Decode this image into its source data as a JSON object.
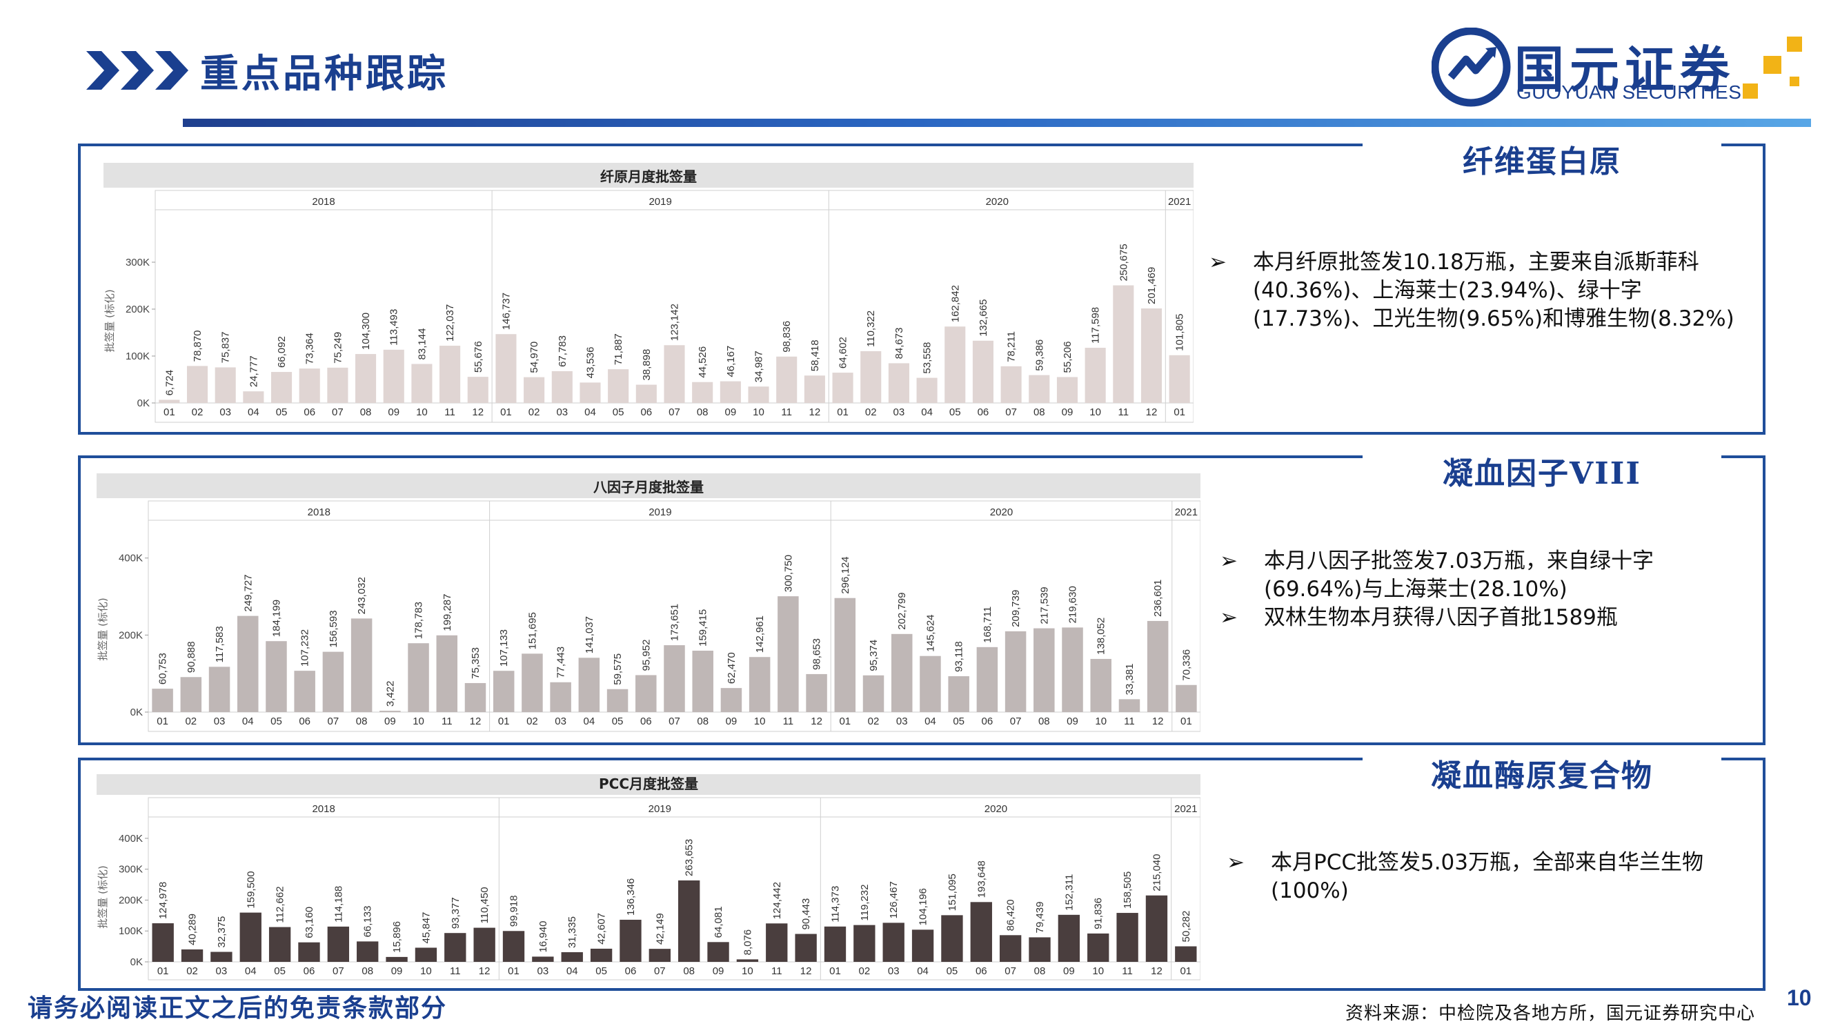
{
  "header": {
    "title": "重点品种跟踪",
    "logo_cn": "国元证券",
    "logo_en": "GUOYUAN SECURITIES"
  },
  "colors": {
    "brand_blue": "#1a3f8f",
    "panel_border": "#1f4e9a",
    "bar_light": "#e0d5d3",
    "bar_mid": "#bfb7b6",
    "bar_dark": "#4a3e3e",
    "logo_gold": "#f2b316"
  },
  "sections": [
    {
      "title": "纤维蛋白原",
      "notes": [
        "本月纤原批签发10.18万瓶，主要来自派斯菲科(40.36%)、上海莱士(23.94%)、绿十字(17.73%)、卫光生物(9.65%)和博雅生物(8.32%)"
      ]
    },
    {
      "title": "凝血因子VIII",
      "notes": [
        "本月八因子批签发7.03万瓶，来自绿十字(69.64%)与上海莱士(28.10%)",
        "双林生物本月获得八因子首批1589瓶"
      ]
    },
    {
      "title": "凝血酶原复合物",
      "notes": [
        "本月PCC批签发5.03万瓶，全部来自华兰生物(100%)"
      ]
    }
  ],
  "chart_data": [
    {
      "type": "bar",
      "title": "纤原月度批签量",
      "ylabel": "批签量 (标化)",
      "ylim": [
        0,
        350000
      ],
      "yticks": [
        0,
        100000,
        200000,
        300000
      ],
      "ytick_labels": [
        "0K",
        "100K",
        "200K",
        "300K"
      ],
      "groups": [
        {
          "label": "2018",
          "categories": [
            "01",
            "02",
            "03",
            "04",
            "05",
            "06",
            "07",
            "08",
            "09",
            "10",
            "11",
            "12"
          ],
          "values": [
            6724,
            78870,
            75837,
            24777,
            66092,
            73364,
            75249,
            104300,
            113493,
            83144,
            122037,
            55676
          ],
          "labels": [
            "6,724",
            "78,870",
            "75,837",
            "24,777",
            "66,092",
            "73,364",
            "75,249",
            "104,300",
            "113,493",
            "83,144",
            "122,037",
            "55,676"
          ]
        },
        {
          "label": "2019",
          "categories": [
            "01",
            "02",
            "03",
            "04",
            "05",
            "06",
            "07",
            "08",
            "09",
            "10",
            "11",
            "12"
          ],
          "values": [
            146737,
            54970,
            67783,
            43536,
            71887,
            38898,
            123142,
            44526,
            46167,
            34987,
            98836,
            58418
          ],
          "labels": [
            "146,737",
            "54,970",
            "67,783",
            "43,536",
            "71,887",
            "38,898",
            "123,142",
            "44,526",
            "46,167",
            "34,987",
            "98,836",
            "58,418"
          ]
        },
        {
          "label": "2020",
          "categories": [
            "01",
            "02",
            "03",
            "04",
            "05",
            "06",
            "07",
            "08",
            "09",
            "10",
            "11",
            "12"
          ],
          "values": [
            64602,
            110322,
            84673,
            53558,
            162842,
            132665,
            78211,
            59386,
            55206,
            117598,
            250675,
            201469
          ],
          "labels": [
            "64,602",
            "110,322",
            "84,673",
            "53,558",
            "162,842",
            "132,665",
            "78,211",
            "59,386",
            "55,206",
            "117,598",
            "250,675",
            "201,469"
          ]
        },
        {
          "label": "2021",
          "categories": [
            "01"
          ],
          "values": [
            101805
          ],
          "labels": [
            "101,805"
          ]
        }
      ]
    },
    {
      "type": "bar",
      "title": "八因子月度批签量",
      "ylabel": "批签量 (标化)",
      "ylim": [
        0,
        430000
      ],
      "yticks": [
        0,
        200000,
        400000
      ],
      "ytick_labels": [
        "0K",
        "200K",
        "400K"
      ],
      "groups": [
        {
          "label": "2018",
          "categories": [
            "01",
            "02",
            "03",
            "04",
            "05",
            "06",
            "07",
            "08",
            "09",
            "10",
            "11",
            "12"
          ],
          "values": [
            60753,
            90888,
            117583,
            249727,
            184199,
            107232,
            156593,
            243032,
            3422,
            178783,
            199287,
            75353
          ],
          "labels": [
            "60,753",
            "90,888",
            "117,583",
            "249,727",
            "184,199",
            "107,232",
            "156,593",
            "243,032",
            "3,422",
            "178,783",
            "199,287",
            "75,353"
          ]
        },
        {
          "label": "2019",
          "categories": [
            "01",
            "02",
            "03",
            "04",
            "05",
            "06",
            "07",
            "08",
            "09",
            "10",
            "11",
            "12"
          ],
          "values": [
            107133,
            151695,
            77443,
            141037,
            59575,
            95952,
            173651,
            159415,
            62470,
            142961,
            300750,
            98653
          ],
          "labels": [
            "107,133",
            "151,695",
            "77,443",
            "141,037",
            "59,575",
            "95,952",
            "173,651",
            "159,415",
            "62,470",
            "142,961",
            "300,750",
            "98,653"
          ]
        },
        {
          "label": "2020",
          "categories": [
            "01",
            "02",
            "03",
            "04",
            "05",
            "06",
            "07",
            "08",
            "09",
            "10",
            "11",
            "12"
          ],
          "values": [
            296124,
            95374,
            202799,
            145624,
            93118,
            168711,
            209739,
            217539,
            219630,
            138052,
            33381,
            236601
          ],
          "labels": [
            "296,124",
            "95,374",
            "202,799",
            "145,624",
            "93,118",
            "168,711",
            "209,739",
            "217,539",
            "219,630",
            "138,052",
            "33,381",
            "236,601"
          ]
        },
        {
          "label": "2021",
          "categories": [
            "01"
          ],
          "values": [
            70336
          ],
          "labels": [
            "70,336"
          ]
        }
      ]
    },
    {
      "type": "bar",
      "title": "PCC月度批签量",
      "ylabel": "批签量 (标化)",
      "ylim": [
        0,
        420000
      ],
      "yticks": [
        0,
        100000,
        200000,
        300000,
        400000
      ],
      "ytick_labels": [
        "0K",
        "100K",
        "200K",
        "300K",
        "400K"
      ],
      "groups": [
        {
          "label": "2018",
          "categories": [
            "01",
            "02",
            "03",
            "04",
            "05",
            "06",
            "07",
            "08",
            "09",
            "10",
            "11",
            "12"
          ],
          "values": [
            124978,
            40289,
            32375,
            159500,
            112662,
            63160,
            114188,
            66133,
            15896,
            45847,
            93377,
            110450
          ],
          "labels": [
            "124,978",
            "40,289",
            "32,375",
            "159,500",
            "112,662",
            "63,160",
            "114,188",
            "66,133",
            "15,896",
            "45,847",
            "93,377",
            "110,450"
          ]
        },
        {
          "label": "2019",
          "categories": [
            "01",
            "03",
            "04",
            "05",
            "06",
            "07",
            "08",
            "09",
            "10",
            "11",
            "12"
          ],
          "values": [
            99918,
            16940,
            31335,
            42607,
            136346,
            42149,
            263653,
            64081,
            8076,
            124442,
            90443
          ],
          "labels": [
            "99,918",
            "16,940",
            "31,335",
            "42,607",
            "136,346",
            "42,149",
            "263,653",
            "64,081",
            "8,076",
            "124,442",
            "90,443"
          ]
        },
        {
          "label": "2020",
          "categories": [
            "01",
            "02",
            "03",
            "04",
            "05",
            "06",
            "07",
            "08",
            "09",
            "10",
            "11",
            "12"
          ],
          "values": [
            114373,
            119232,
            126467,
            104196,
            151095,
            193648,
            86420,
            79439,
            152311,
            91836,
            158505,
            215040
          ],
          "labels": [
            "114,373",
            "119,232",
            "126,467",
            "104,196",
            "151,095",
            "193,648",
            "86,420",
            "79,439",
            "152,311",
            "91,836",
            "158,505",
            "215,040"
          ]
        },
        {
          "label": "2021",
          "categories": [
            "01"
          ],
          "values": [
            50282
          ],
          "labels": [
            "50,282"
          ]
        }
      ]
    }
  ],
  "footer": {
    "disclaimer": "请务必阅读正文之后的免责条款部分",
    "source": "资料来源：中检院及各地方所，国元证券研究中心",
    "page_number": "10"
  }
}
